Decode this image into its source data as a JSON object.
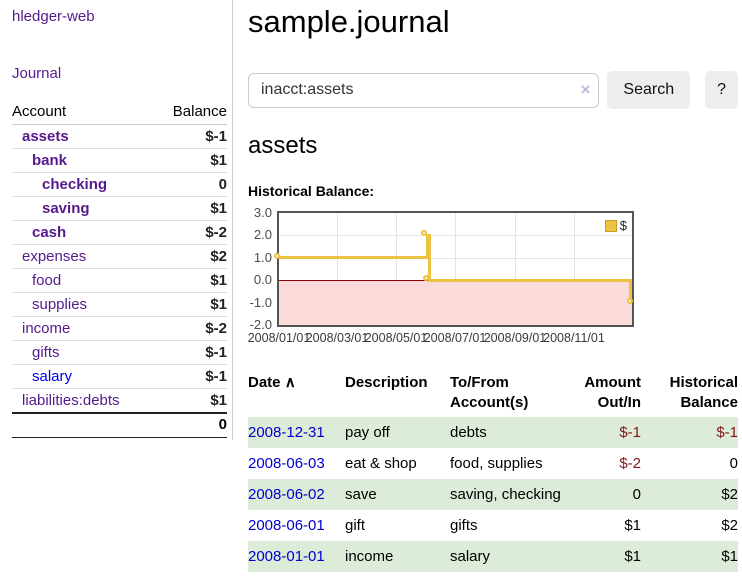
{
  "colors": {
    "link_purple": "#551a8b",
    "link_blue": "#0000ee",
    "negative_red": "#801919",
    "dim_negative_red": "#b57676",
    "stripe_green": "#ddecd9",
    "chart_gold": "#edc240",
    "negative_region_pink": "#fbdada",
    "zero_line_red": "#8b0000",
    "button_gray": "#ededed"
  },
  "sidebar": {
    "app_title": "hledger-web",
    "journal_link": "Journal",
    "accounts_table": {
      "headers": {
        "account": "Account",
        "balance": "Balance"
      },
      "rows": [
        {
          "name": "assets",
          "depth": 1,
          "balance": "$-1",
          "bold": true,
          "negative": true
        },
        {
          "name": "bank",
          "depth": 2,
          "balance": "$1",
          "bold": true,
          "negative": false
        },
        {
          "name": "checking",
          "depth": 3,
          "balance": "0",
          "bold": true,
          "negative": false
        },
        {
          "name": "saving",
          "depth": 3,
          "balance": "$1",
          "bold": true,
          "negative": false
        },
        {
          "name": "cash",
          "depth": 2,
          "balance": "$-2",
          "bold": true,
          "negative": true
        },
        {
          "name": "expenses",
          "depth": 1,
          "balance": "$2",
          "bold": false,
          "negative": false
        },
        {
          "name": "food",
          "depth": 2,
          "balance": "$1",
          "bold": false,
          "negative": false
        },
        {
          "name": "supplies",
          "depth": 2,
          "balance": "$1",
          "bold": false,
          "negative": false
        },
        {
          "name": "income",
          "depth": 1,
          "balance": "$-2",
          "bold": false,
          "negative": true
        },
        {
          "name": "gifts",
          "depth": 2,
          "balance": "$-1",
          "bold": false,
          "negative": true
        },
        {
          "name": "salary",
          "depth": 2,
          "balance": "$-1",
          "bold": false,
          "negative": true,
          "link_blue": true
        },
        {
          "name": "liabilities:debts",
          "depth": 1,
          "balance": "$1",
          "bold": false,
          "negative": false
        }
      ],
      "total": "0"
    }
  },
  "main": {
    "title": "sample.journal",
    "search": {
      "value": "inacct:assets",
      "clear_icon": "×",
      "search_button": "Search",
      "help_button": "?"
    },
    "account_heading": "assets",
    "chart_label": "Historical Balance:"
  },
  "chart_data": {
    "type": "line",
    "title": "Historical Balance:",
    "series": [
      {
        "name": "$",
        "color": "#edc240",
        "style": "step-after",
        "points": [
          [
            "2008/01/01",
            1
          ],
          [
            "2008/06/01",
            2
          ],
          [
            "2008/06/03",
            0
          ],
          [
            "2008/12/31",
            -1
          ]
        ]
      }
    ],
    "x_ticks": [
      "2008/01/01",
      "2008/03/01",
      "2008/05/01",
      "2008/07/01",
      "2008/09/01",
      "2008/11/01"
    ],
    "y_ticks": [
      "3.0",
      "2.0",
      "1.0",
      "0.0",
      "-1.0",
      "-2.0"
    ],
    "ylim": [
      -2,
      3
    ],
    "grid": true,
    "legend_position": "top-right",
    "negative_region_color": "#fbdada",
    "zero_line_color": "#8b0000"
  },
  "register": {
    "headers": {
      "date": "Date",
      "sort_icon": "∧",
      "description": "Description",
      "accounts": "To/From Account(s)",
      "amount": "Amount Out/In",
      "balance": "Historical Balance"
    },
    "rows": [
      {
        "date": "2008-12-31",
        "description": "pay off",
        "accounts": "debts",
        "amount": "$-1",
        "balance": "$-1",
        "amount_negative": true,
        "balance_negative": true
      },
      {
        "date": "2008-06-03",
        "description": "eat & shop",
        "accounts": "food, supplies",
        "amount": "$-2",
        "balance": "0",
        "amount_negative": true,
        "balance_negative": false
      },
      {
        "date": "2008-06-02",
        "description": "save",
        "accounts": "saving, checking",
        "amount": "0",
        "balance": "$2",
        "amount_negative": false,
        "balance_negative": false
      },
      {
        "date": "2008-06-01",
        "description": "gift",
        "accounts": "gifts",
        "amount": "$1",
        "balance": "$2",
        "amount_negative": false,
        "balance_negative": false
      },
      {
        "date": "2008-01-01",
        "description": "income",
        "accounts": "salary",
        "amount": "$1",
        "balance": "$1",
        "amount_negative": false,
        "balance_negative": false
      }
    ]
  }
}
